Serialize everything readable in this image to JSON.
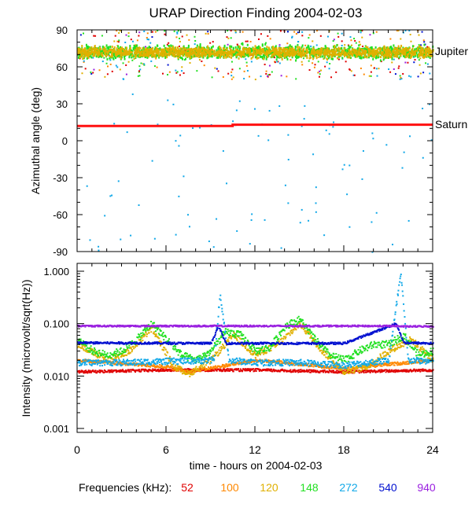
{
  "title": "URAP Direction Finding  2004-02-03",
  "xlabel": "time - hours on 2004-02-03",
  "legend": {
    "label": "Frequencies (kHz):",
    "items": [
      {
        "label": "52",
        "color": "#e00000"
      },
      {
        "label": "100",
        "color": "#ff8800"
      },
      {
        "label": "120",
        "color": "#e0b000"
      },
      {
        "label": "148",
        "color": "#22e022"
      },
      {
        "label": "272",
        "color": "#10a8e8"
      },
      {
        "label": "540",
        "color": "#0010d0"
      },
      {
        "label": "940",
        "color": "#9a20e0"
      }
    ]
  },
  "chart_data": [
    {
      "type": "scatter",
      "title": "URAP Direction Finding  2004-02-03",
      "xlabel": "time - hours on 2004-02-03",
      "ylabel": "Azimuthal angle (deg)",
      "xlim": [
        0,
        24
      ],
      "ylim": [
        -90,
        90
      ],
      "x_ticks": [
        "0",
        "6",
        "12",
        "18",
        "24"
      ],
      "y_ticks": [
        "90",
        "60",
        "30",
        "0",
        "-30",
        "-60",
        "-90"
      ],
      "annotations": [
        {
          "text": "Jupiter",
          "y": 72
        },
        {
          "text": "Saturn",
          "y": 12
        }
      ],
      "series": [
        {
          "name": "148",
          "kind": "band",
          "center": 72,
          "spread": 5
        },
        {
          "name": "120",
          "kind": "band",
          "center": 72,
          "spread": 4
        },
        {
          "name": "Saturn",
          "kind": "line",
          "points": [
            [
              0,
              12
            ],
            [
              10.5,
              12
            ],
            [
              10.5,
              13
            ],
            [
              24,
              13
            ]
          ]
        }
      ]
    },
    {
      "type": "line",
      "xlabel": "time - hours on 2004-02-03",
      "ylabel": "Intensity (microvolt/sqrt(Hz))",
      "yscale": "log",
      "xlim": [
        0,
        24
      ],
      "ylim": [
        0.001,
        1.0
      ],
      "x_ticks": [
        "0",
        "6",
        "12",
        "18",
        "24"
      ],
      "y_ticks": [
        "1.000",
        "0.100",
        "0.010",
        "0.001"
      ],
      "series": [
        {
          "name": "940",
          "x": [
            0,
            6,
            9.5,
            12,
            18,
            21.5,
            22,
            24
          ],
          "y": [
            0.09,
            0.09,
            0.09,
            0.09,
            0.09,
            0.09,
            0.088,
            0.089
          ]
        },
        {
          "name": "540",
          "x": [
            0,
            9,
            9.5,
            10,
            12,
            18,
            21.5,
            22,
            24
          ],
          "y": [
            0.043,
            0.042,
            0.09,
            0.042,
            0.042,
            0.042,
            0.1,
            0.043,
            0.042
          ]
        },
        {
          "name": "272",
          "x": [
            0,
            3,
            6,
            9.2,
            9.6,
            10.2,
            12,
            15,
            18,
            21,
            21.8,
            22.3,
            24
          ],
          "y": [
            0.018,
            0.018,
            0.019,
            0.02,
            0.35,
            0.02,
            0.018,
            0.018,
            0.016,
            0.02,
            0.9,
            0.02,
            0.019
          ]
        },
        {
          "name": "148",
          "x": [
            0,
            1,
            2,
            3,
            4,
            5,
            6,
            7,
            8,
            9,
            10,
            11,
            12,
            13,
            14,
            15,
            16,
            17,
            18,
            19,
            20,
            21,
            22,
            23,
            24
          ],
          "y": [
            0.05,
            0.03,
            0.025,
            0.03,
            0.05,
            0.1,
            0.05,
            0.025,
            0.02,
            0.03,
            0.07,
            0.06,
            0.03,
            0.035,
            0.09,
            0.12,
            0.05,
            0.025,
            0.02,
            0.03,
            0.04,
            0.04,
            0.06,
            0.025,
            0.03
          ]
        },
        {
          "name": "120",
          "x": [
            0,
            2,
            3.5,
            5,
            6.5,
            7.5,
            9,
            10.5,
            12,
            13.5,
            15,
            16.5,
            18,
            19.5,
            21,
            22.5,
            24
          ],
          "y": [
            0.04,
            0.02,
            0.03,
            0.08,
            0.015,
            0.011,
            0.02,
            0.06,
            0.025,
            0.04,
            0.1,
            0.03,
            0.012,
            0.015,
            0.03,
            0.05,
            0.02
          ]
        },
        {
          "name": "100",
          "x": [
            0,
            6,
            7.5,
            12,
            18,
            24
          ],
          "y": [
            0.02,
            0.015,
            0.012,
            0.02,
            0.014,
            0.02
          ]
        },
        {
          "name": "52",
          "x": [
            0,
            6,
            12,
            18,
            24
          ],
          "y": [
            0.012,
            0.013,
            0.013,
            0.012,
            0.013
          ]
        }
      ]
    }
  ]
}
